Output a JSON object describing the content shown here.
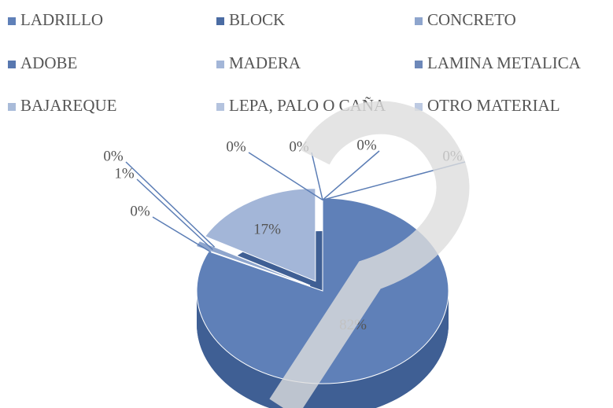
{
  "chart_data": {
    "type": "pie",
    "categories": [
      "LADRILLO",
      "BLOCK",
      "CONCRETO",
      "ADOBE",
      "MADERA",
      "LAMINA METALICA",
      "BAJAREQUE",
      "LEPA, PALO O CAÑA",
      "OTRO MATERIAL"
    ],
    "values": [
      82,
      0,
      1,
      0,
      17,
      0,
      0,
      0,
      0
    ],
    "value_labels": [
      "82%",
      "0%",
      "1%",
      "0%",
      "17%",
      "0%",
      "0%",
      "0%",
      "0%"
    ],
    "colors": [
      "#5f80b8",
      "#4b6ca3",
      "#8ea5cd",
      "#5878b0",
      "#a3b6d8",
      "#6d88b9",
      "#a9bbd9",
      "#b4c3de",
      "#bdcae2"
    ],
    "legend": "top"
  }
}
